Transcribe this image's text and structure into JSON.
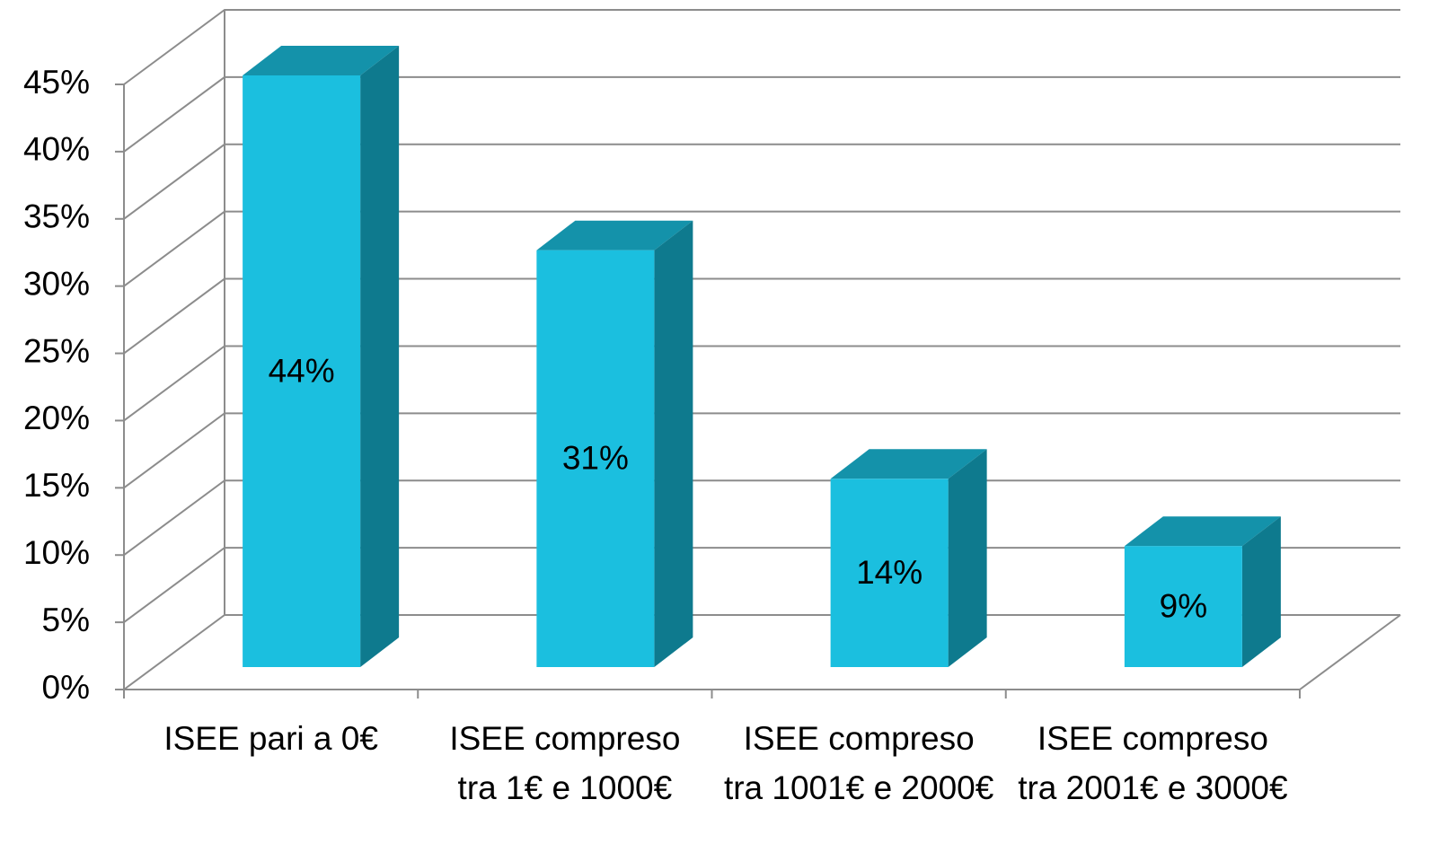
{
  "chart_data": {
    "type": "bar3d",
    "categories": [
      "ISEE pari a 0€",
      "ISEE compreso tra 1€ e 1000€",
      "ISEE compreso tra 1001€ e 2000€",
      "ISEE compreso tra 2001€ e 3000€"
    ],
    "values": [
      44,
      31,
      14,
      9
    ],
    "value_labels": [
      "44%",
      "31%",
      "14%",
      "9%"
    ],
    "color": "#1bbfdf",
    "ylim": [
      0,
      45
    ],
    "yticks": [
      {
        "value": 0,
        "label": "0%"
      },
      {
        "value": 5,
        "label": "5%"
      },
      {
        "value": 10,
        "label": "10%"
      },
      {
        "value": 15,
        "label": "15%"
      },
      {
        "value": 20,
        "label": "20%"
      },
      {
        "value": 25,
        "label": "25%"
      },
      {
        "value": 30,
        "label": "30%"
      },
      {
        "value": 35,
        "label": "35%"
      },
      {
        "value": 40,
        "label": "40%"
      },
      {
        "value": 45,
        "label": "45%"
      }
    ],
    "grid": true
  }
}
